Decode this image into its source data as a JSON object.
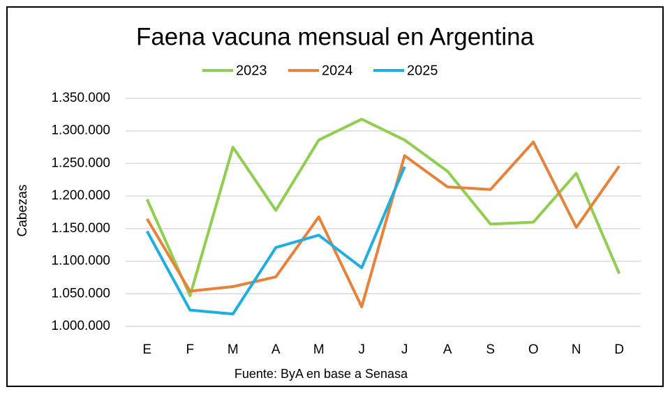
{
  "chart_data": {
    "type": "line",
    "title": "Faena vacuna mensual en Argentina",
    "y_label": "Cabezas",
    "source": "Fuente: ByA en base a Senasa",
    "categories": [
      "E",
      "F",
      "M",
      "A",
      "M",
      "J",
      "J",
      "A",
      "S",
      "O",
      "N",
      "D"
    ],
    "series": [
      {
        "name": "2023",
        "color": "#8fce4f",
        "values": [
          1195000,
          1047000,
          1275000,
          1178000,
          1286000,
          1318000,
          1286000,
          1238000,
          1157000,
          1160000,
          1235000,
          1081000
        ]
      },
      {
        "name": "2024",
        "color": "#e8823a",
        "values": [
          1165000,
          1054000,
          1061000,
          1076000,
          1168000,
          1030000,
          1262000,
          1214000,
          1210000,
          1283000,
          1152000,
          1246000
        ]
      },
      {
        "name": "2025",
        "color": "#1eaee2",
        "values": [
          1146000,
          1025000,
          1019000,
          1121000,
          1140000,
          1090000,
          1245000,
          null,
          null,
          null,
          null,
          null
        ]
      }
    ],
    "ylim": [
      1000000,
      1350000
    ],
    "yticks": [
      {
        "value": 1000000,
        "label": "1.000.000"
      },
      {
        "value": 1050000,
        "label": "1.050.000"
      },
      {
        "value": 1100000,
        "label": "1.100.000"
      },
      {
        "value": 1150000,
        "label": "1.150.000"
      },
      {
        "value": 1200000,
        "label": "1.200.000"
      },
      {
        "value": 1250000,
        "label": "1.250.000"
      },
      {
        "value": 1300000,
        "label": "1.300.000"
      },
      {
        "value": 1350000,
        "label": "1.350.000"
      }
    ],
    "grid": true,
    "legend": "top"
  }
}
